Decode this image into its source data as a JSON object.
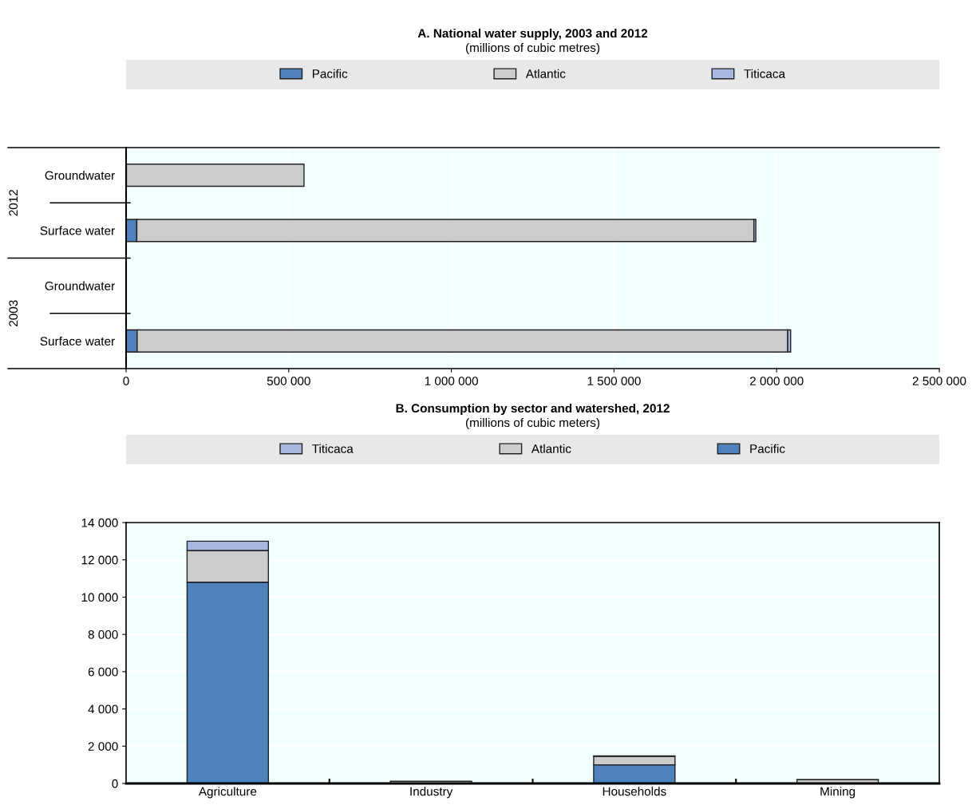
{
  "chart_data": [
    {
      "type": "bar",
      "orientation": "horizontal",
      "stacked": true,
      "title": "A. National water supply, 2003 and 2012",
      "subtitle": "(millions of cubic metres)",
      "categories": [
        "Groundwater",
        "Surface water",
        "Groundwater",
        "Surface water"
      ],
      "annotations": [
        "2012",
        "2003"
      ],
      "series": [
        {
          "name": "Pacific",
          "color": "#4f81bd",
          "values": [
            1000,
            33000,
            null,
            34000
          ]
        },
        {
          "name": "Atlantic",
          "color": "#cccccc",
          "values": [
            546000,
            1897000,
            null,
            2000000
          ]
        },
        {
          "name": "Titicaca",
          "color": "#a6b7e0",
          "values": [
            null,
            6000,
            null,
            9000
          ]
        }
      ],
      "xlim": [
        0,
        2500000
      ],
      "xticks": [
        0,
        {
          "value": 500000,
          "label": "500 000"
        },
        {
          "value": 1000000,
          "label": "1 000 000"
        },
        {
          "value": 1500000,
          "label": "1 500 000"
        },
        {
          "value": 2000000,
          "label": "2 000 000"
        },
        {
          "value": 2500000,
          "label": "2 500 000"
        }
      ],
      "grid": "x",
      "legend": "top"
    },
    {
      "type": "bar",
      "stacked": true,
      "title": "B. Consumption by sector and watershed, 2012",
      "subtitle": "(millions of cubic meters)",
      "categories": [
        "Agriculture",
        "Industry",
        "Households",
        "Mining"
      ],
      "series": [
        {
          "name": "Pacific",
          "color": "#4f81bd",
          "values": [
            10800,
            null,
            1000,
            null
          ]
        },
        {
          "name": "Atlantic",
          "color": "#cccccc",
          "values": [
            1700,
            120,
            450,
            200
          ]
        },
        {
          "name": "Titicaca",
          "color": "#a6b7e0",
          "values": [
            500,
            null,
            30,
            10
          ]
        }
      ],
      "ylim": [
        0,
        14000
      ],
      "yticks": [
        0,
        {
          "value": 2000,
          "label": "2 000"
        },
        {
          "value": 4000,
          "label": "4 000"
        },
        {
          "value": 6000,
          "label": "6 000"
        },
        {
          "value": 8000,
          "label": "8 000"
        },
        {
          "value": 10000,
          "label": "10 000"
        },
        {
          "value": 12000,
          "label": "12 000"
        },
        {
          "value": 14000,
          "label": "14 000"
        }
      ],
      "grid": "y",
      "legend": "top"
    }
  ]
}
